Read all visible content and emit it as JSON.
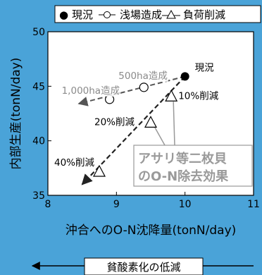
{
  "legend": {
    "current_symbol": "●",
    "current_label": "現況",
    "shallow_label": "浅場造成",
    "load_label": "負荷削減"
  },
  "chart_data": {
    "type": "scatter",
    "xlabel": "沖合へのO-N沈降量(tonN/day)",
    "ylabel": "内部生産(tonN/day)",
    "xlim": [
      8,
      11
    ],
    "ylim": [
      35,
      50
    ],
    "x_ticks": [
      "8",
      "9",
      "10",
      "11"
    ],
    "y_ticks": [
      "35",
      "40",
      "45",
      "50"
    ],
    "grid": false,
    "legend_position": "top",
    "series": [
      {
        "name": "現況",
        "marker": "filled-circle",
        "points": [
          {
            "x": 10.0,
            "y": 45.9,
            "label": "現況"
          }
        ]
      },
      {
        "name": "浅場造成",
        "marker": "open-circle",
        "points": [
          {
            "x": 9.4,
            "y": 44.9,
            "label": "500ha造成"
          },
          {
            "x": 8.9,
            "y": 43.8,
            "label": "1,000ha造成"
          }
        ]
      },
      {
        "name": "負荷削減",
        "marker": "open-triangle",
        "points": [
          {
            "x": 9.8,
            "y": 44.1,
            "label": "10%削減"
          },
          {
            "x": 9.5,
            "y": 41.7,
            "label": "20%削減"
          },
          {
            "x": 8.75,
            "y": 37.2,
            "label": "40%削減"
          }
        ]
      }
    ],
    "arrows": [
      {
        "from": [
          10.0,
          45.9
        ],
        "to": [
          8.45,
          43.4
        ],
        "style": "dashed",
        "color": "#555555"
      },
      {
        "from": [
          10.0,
          45.9
        ],
        "to": [
          8.5,
          36.0
        ],
        "style": "dashed",
        "color": "#222222"
      }
    ],
    "annotation": {
      "line1": "アサリ等二枚貝",
      "line2": "のO-N除去効果"
    },
    "colors": {
      "background": "#4aa3d8",
      "plot": "#ffffff",
      "dark_arrow": "#222222",
      "light_arrow": "#555555",
      "annotation_text": "#9a9a9a",
      "leader_line": "#999999"
    }
  },
  "bottom_banner": {
    "label": "貧酸素化の低減"
  }
}
